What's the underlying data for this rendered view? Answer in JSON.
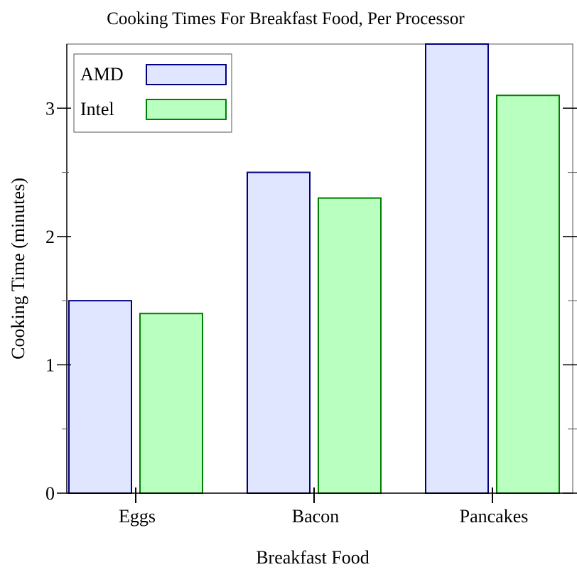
{
  "chart_data": {
    "type": "bar",
    "title": "Cooking Times For Breakfast Food, Per Processor",
    "xlabel": "Breakfast Food",
    "ylabel": "Cooking Time (minutes)",
    "categories": [
      "Eggs",
      "Bacon",
      "Pancakes"
    ],
    "series": [
      {
        "name": "AMD",
        "values": [
          1.5,
          2.5,
          3.5
        ],
        "fill": "#e0e6ff",
        "stroke": "#000080"
      },
      {
        "name": "Intel",
        "values": [
          1.4,
          2.3,
          3.1
        ],
        "fill": "#b9ffbf",
        "stroke": "#008000"
      }
    ],
    "ylim": [
      0,
      3.5
    ],
    "y_ticks_major": [
      0,
      1,
      2,
      3
    ],
    "y_ticks_minor": [
      0.5,
      1.5,
      2.5
    ],
    "grid": false,
    "legend_position": "top-left"
  }
}
